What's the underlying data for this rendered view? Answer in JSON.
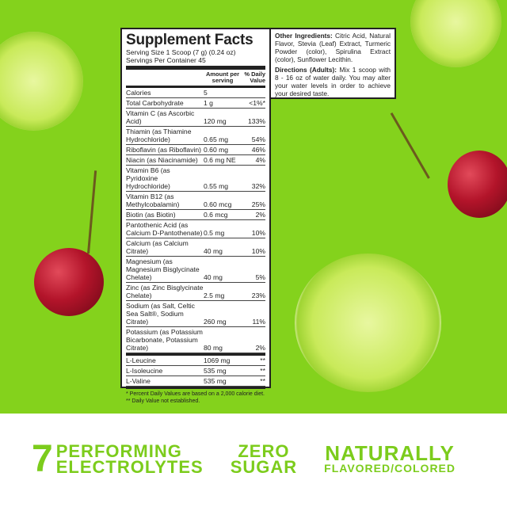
{
  "facts": {
    "title": "Supplement Facts",
    "serving_size": "Serving Size 1 Scoop (7 g) (0.24 oz)",
    "servings": "Servings Per Container 45",
    "col_amount": "Amount per serving",
    "col_dv": "% Daily Value",
    "rows": [
      {
        "name": "Calories",
        "amount": "5",
        "dv": ""
      },
      {
        "name": "Total Carbohydrate",
        "amount": "1 g",
        "dv": "<1%*"
      },
      {
        "name": "Vitamin C (as Ascorbic Acid)",
        "amount": "120 mg",
        "dv": "133%"
      },
      {
        "name": "Thiamin (as Thiamine Hydrochloride)",
        "amount": "0.65 mg",
        "dv": "54%"
      },
      {
        "name": "Riboflavin (as Riboflavin)",
        "amount": "0.60 mg",
        "dv": "46%"
      },
      {
        "name": "Niacin (as Niacinamide)",
        "amount": "0.6 mg NE",
        "dv": "4%"
      },
      {
        "name": "Vitamin B6 (as Pyridoxine Hydrochloride)",
        "amount": "0.55 mg",
        "dv": "32%"
      },
      {
        "name": "Vitamin B12 (as Methylcobalamin)",
        "amount": "0.60 mcg",
        "dv": "25%"
      },
      {
        "name": "Biotin (as Biotin)",
        "amount": "0.6 mcg",
        "dv": "2%"
      },
      {
        "name": "Pantothenic Acid (as Calcium D-Pantothenate)",
        "amount": "0.5 mg",
        "dv": "10%"
      },
      {
        "name": "Calcium (as Calcium Citrate)",
        "amount": "40 mg",
        "dv": "10%"
      },
      {
        "name": "Magnesium (as Magnesium Bisglycinate Chelate)",
        "amount": "40 mg",
        "dv": "5%"
      },
      {
        "name": "Zinc (as Zinc Bisglycinate Chelate)",
        "amount": "2.5 mg",
        "dv": "23%"
      },
      {
        "name": "Sodium (as Salt, Celtic Sea Salt®, Sodium Citrate)",
        "amount": "260 mg",
        "dv": "11%"
      },
      {
        "name": "Potassium (as Potassium Bicarbonate, Potassium Citrate)",
        "amount": "80 mg",
        "dv": "2%"
      }
    ],
    "amino": [
      {
        "name": "L-Leucine",
        "amount": "1069 mg",
        "dv": "**"
      },
      {
        "name": "L-Isoleucine",
        "amount": "535 mg",
        "dv": "**"
      },
      {
        "name": "L-Valine",
        "amount": "535 mg",
        "dv": "**"
      }
    ],
    "footnote1": "* Percent Daily Values are based on a 2,000 calorie diet.",
    "footnote2": "** Daily Value not established."
  },
  "other": {
    "ing_label": "Other Ingredients:",
    "ing_text": " Citric Acid, Natural Flavor, Stevia (Leaf) Extract, Turmeric Powder (color), Spirulina Extract (color), Sunflower Lecithin.",
    "dir_label": "Directions (Adults):",
    "dir_text": " Mix 1 scoop with 8 - 16 oz of water daily. You may alter your water levels in order to achieve your desired taste."
  },
  "claims": {
    "num": "7",
    "c1a": "PERFORMING",
    "c1b": "ELECTROLYTES",
    "c2a": "ZERO",
    "c2b": "SUGAR",
    "c3a": "NATURALLY",
    "c3b": "FLAVORED/COLORED"
  },
  "colors": {
    "background": "#84d21c",
    "claim_green": "#7ccc1c"
  }
}
